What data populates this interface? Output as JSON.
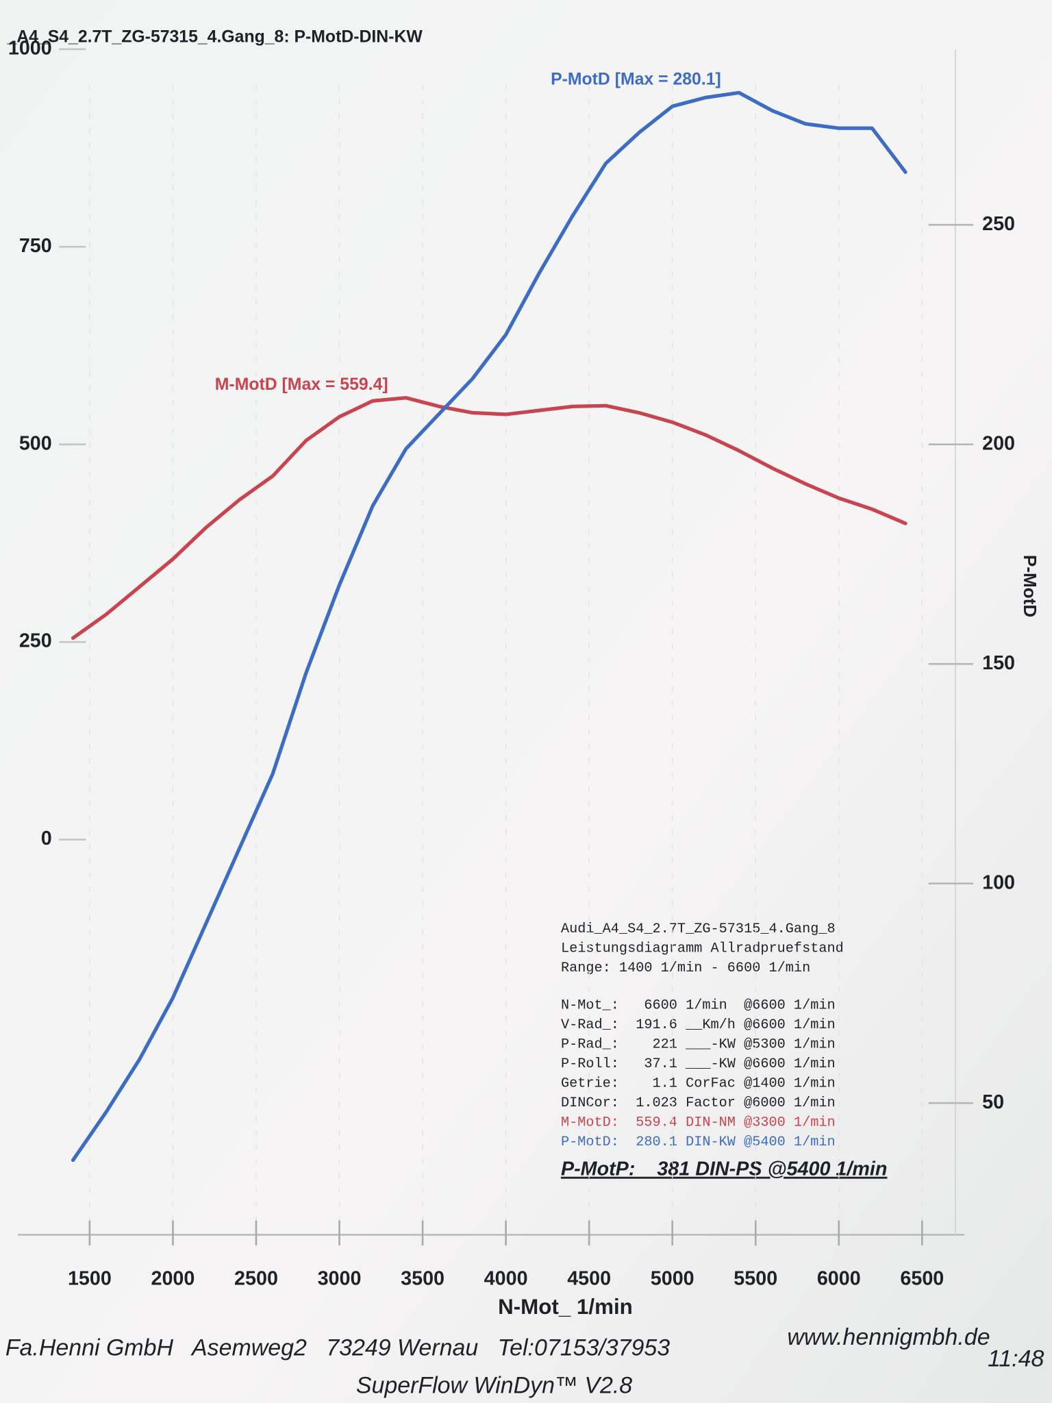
{
  "chart_data": {
    "type": "line",
    "title": "_A4_S4_2.7T_ZG-57315_4.Gang_8: P-MotD-DIN-KW",
    "x": [
      1400,
      1600,
      1800,
      2000,
      2200,
      2400,
      2600,
      2800,
      3000,
      3200,
      3400,
      3600,
      3800,
      4000,
      4200,
      4400,
      4600,
      4800,
      5000,
      5200,
      5400,
      5600,
      5800,
      6000,
      6200,
      6400
    ],
    "xlim": [
      1300,
      6700
    ],
    "xticks": [
      1500,
      2000,
      2500,
      3000,
      3500,
      4000,
      4500,
      5000,
      5500,
      6000,
      6500
    ],
    "xlabel": "N-Mot_ 1/min",
    "ylim": [
      -500,
      1000
    ],
    "yticks": [
      0,
      250,
      500,
      750,
      1000
    ],
    "y2lim": [
      20,
      290
    ],
    "y2ticks": [
      50,
      100,
      150,
      200,
      250
    ],
    "y2label": "P-MotD",
    "series": [
      {
        "name": "M-MotD",
        "color": "#c8444f",
        "values": [
          255,
          285,
          320,
          355,
          395,
          430,
          460,
          505,
          535,
          555,
          559,
          548,
          540,
          538,
          543,
          548,
          549,
          540,
          528,
          512,
          492,
          470,
          450,
          432,
          418,
          400
        ]
      },
      {
        "name": "P-MotD",
        "color": "#3d6cc4",
        "axis": "y2",
        "values": [
          37,
          48,
          60,
          74,
          91,
          108,
          125,
          148,
          168,
          186,
          199,
          207,
          215,
          225,
          239,
          252,
          264,
          271,
          277,
          279,
          280.1,
          276,
          273,
          272,
          272,
          262
        ]
      }
    ],
    "annotations": [
      "P-MotD [Max = 280.1]",
      "M-MotD [Max = 559.4]"
    ],
    "info": [
      "Audi_A4_S4_2.7T_ZG-57315_4.Gang_8",
      "Leistungsdiagramm Allradpruefstand",
      "Range: 1400 1/min - 6600 1/min",
      "N-Mot_:   6600 1/min  @6600 1/min",
      "V-Rad_:  191.6 __Km/h @6600 1/min",
      "P-Rad_:    221 ___-KW @5300 1/min",
      "P-Roll:   37.1 ___-KW @6600 1/min",
      "Getrie:    1.1 CorFac @1400 1/min",
      "DINCor:  1.023 Factor @6000 1/min",
      "M-MotD:  559.4 DIN-NM @3300 1/min",
      "P-MotD:  280.1 DIN-KW @5400 1/min"
    ],
    "summary": "P-MotP:    381 DIN-PS @5400 1/min",
    "footer": [
      "Fa.Henni GmbH   Asemweg2   73249 Wernau   Tel:07153/37953",
      "www.hennigmbh.de",
      "SuperFlow WinDyn™ V2.8",
      "11:48"
    ]
  }
}
